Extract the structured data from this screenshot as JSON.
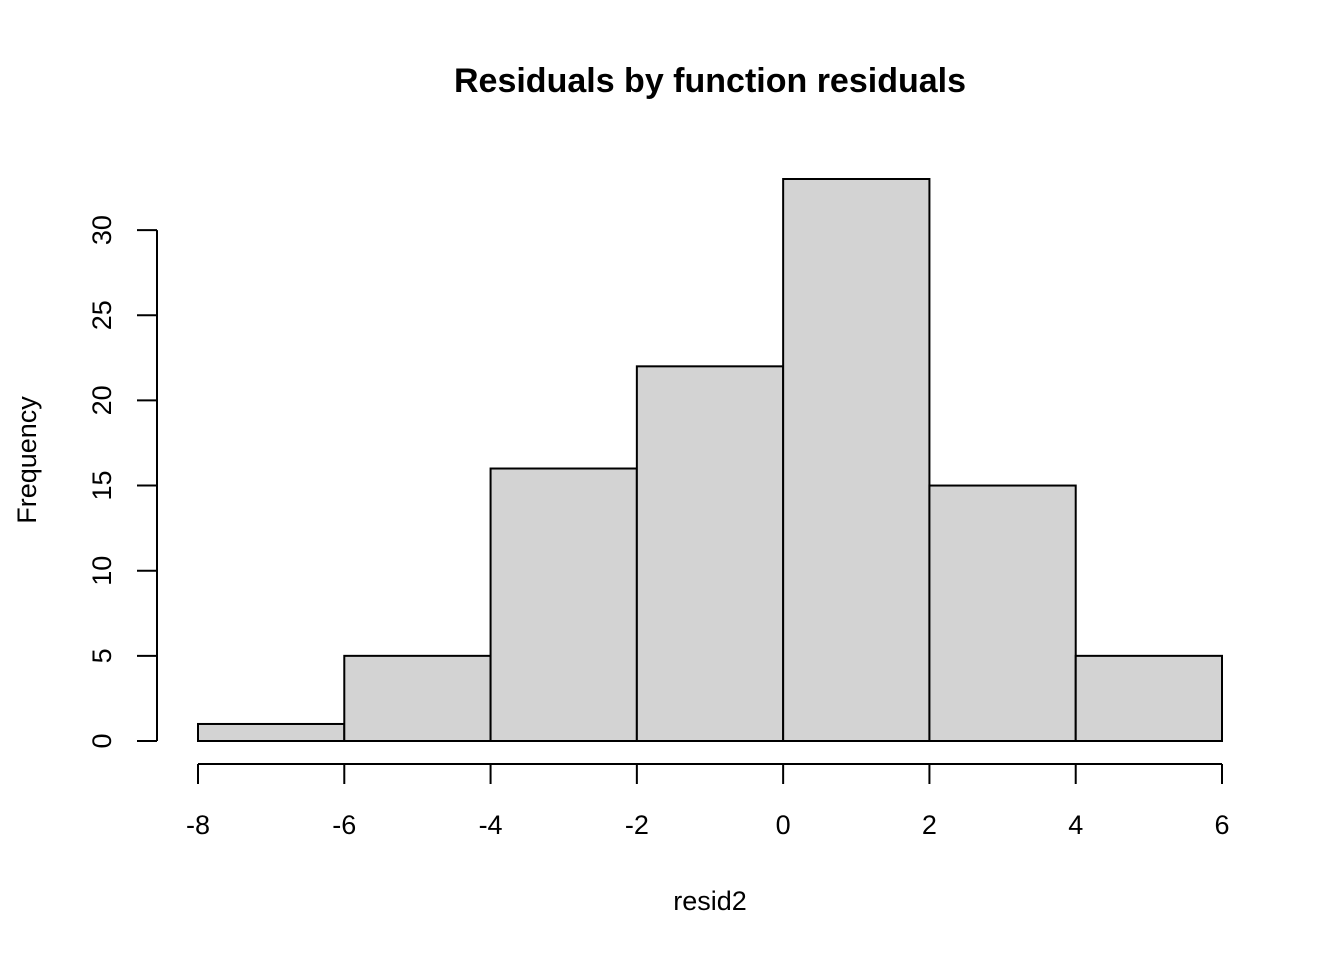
{
  "chart_data": {
    "type": "bar",
    "title": "Residuals by function residuals",
    "xlabel": "resid2",
    "ylabel": "Frequency",
    "bins": [
      {
        "x0": -8,
        "x1": -6,
        "count": 1
      },
      {
        "x0": -6,
        "x1": -4,
        "count": 5
      },
      {
        "x0": -4,
        "x1": -2,
        "count": 16
      },
      {
        "x0": -2,
        "x1": 0,
        "count": 22
      },
      {
        "x0": 0,
        "x1": 2,
        "count": 33
      },
      {
        "x0": 2,
        "x1": 4,
        "count": 15
      },
      {
        "x0": 4,
        "x1": 6,
        "count": 5
      }
    ],
    "xlim": [
      -8,
      6
    ],
    "ylim": [
      0,
      33
    ],
    "xticks": [
      -8,
      -6,
      -4,
      -2,
      0,
      2,
      4,
      6
    ],
    "yticks": [
      0,
      5,
      10,
      15,
      20,
      25,
      30
    ],
    "bar_color": "#d3d3d3",
    "grid": false,
    "legend": "none"
  }
}
